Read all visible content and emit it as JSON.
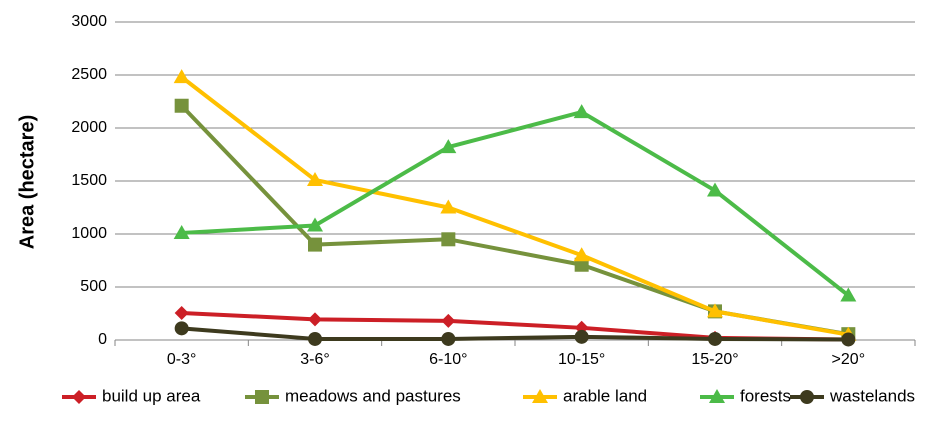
{
  "chart_data": {
    "type": "line",
    "title": "",
    "xlabel": "",
    "ylabel": "Area (hectare)",
    "categories": [
      "0-3°",
      "3-6°",
      "6-10°",
      "10-15°",
      "15-20°",
      ">20°"
    ],
    "ylim": [
      0,
      3000
    ],
    "yticks": [
      0,
      500,
      1000,
      1500,
      2000,
      2500,
      3000
    ],
    "grid": true,
    "legend_position": "bottom",
    "series": [
      {
        "name": "build up area",
        "color": "#cc1f26",
        "marker": "diamond",
        "values": [
          255,
          195,
          180,
          115,
          20,
          5
        ]
      },
      {
        "name": "meadows and pastures",
        "color": "#76923c",
        "marker": "square",
        "values": [
          2210,
          900,
          950,
          710,
          270,
          55
        ]
      },
      {
        "name": "arable land",
        "color": "#ffc000",
        "marker": "triangle",
        "values": [
          2480,
          1510,
          1250,
          800,
          270,
          50
        ]
      },
      {
        "name": "forests",
        "color": "#4cbb48",
        "marker": "triangle",
        "values": [
          1010,
          1080,
          1820,
          2150,
          1410,
          420
        ]
      },
      {
        "name": "wastelands",
        "color": "#3d3a1e",
        "marker": "circle",
        "values": [
          110,
          10,
          10,
          30,
          10,
          5
        ]
      }
    ]
  }
}
